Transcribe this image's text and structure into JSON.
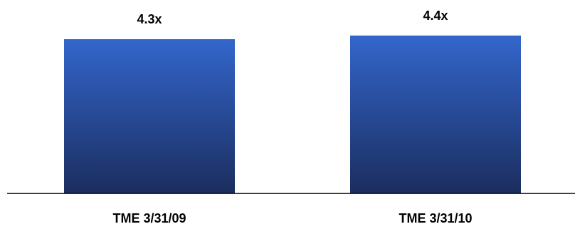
{
  "chart_data": {
    "type": "bar",
    "categories": [
      "TME 3/31/09",
      "TME 3/31/10"
    ],
    "values": [
      4.3,
      4.4
    ],
    "data_labels": [
      "4.3x",
      "4.4x"
    ],
    "title": "",
    "xlabel": "",
    "ylabel": "",
    "grid": false,
    "legend": "none",
    "colors": {
      "bar_top": "#3366CC",
      "bar_bottom": "#1B2D5E",
      "axis": "#000000",
      "text": "#000000"
    }
  }
}
